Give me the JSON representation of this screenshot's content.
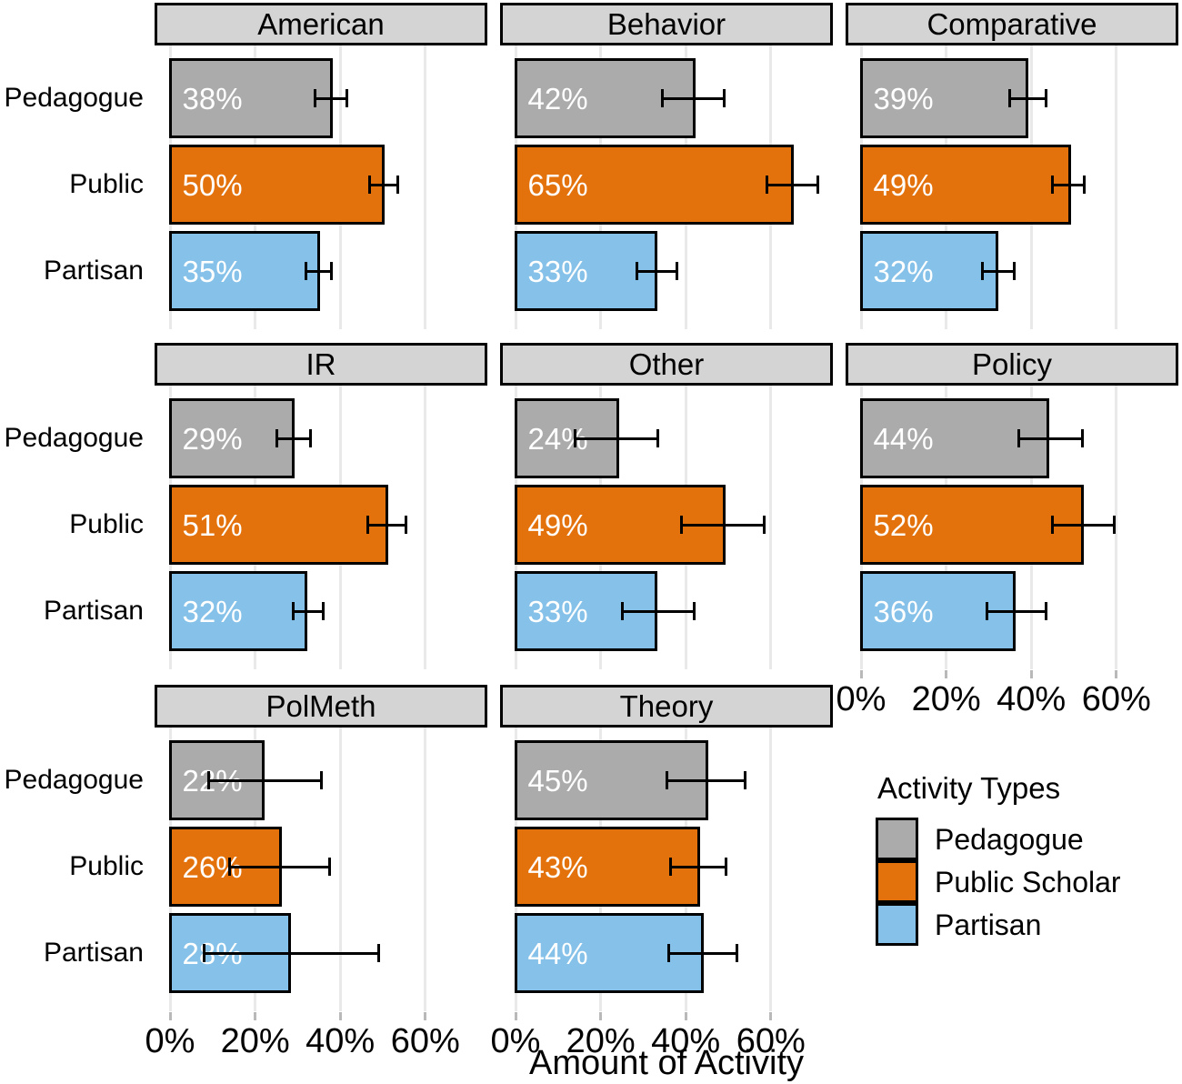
{
  "chart_data": {
    "type": "bar",
    "orientation": "horizontal",
    "title": "",
    "xlabel": "Amount of Activity",
    "ylabel": "",
    "categories": [
      "Pedagogue",
      "Public",
      "Partisan"
    ],
    "series_colors": [
      "#ABABAB",
      "#E4720C",
      "#85C1E8"
    ],
    "x_ticks": [
      "0%",
      "20%",
      "40%",
      "60%"
    ],
    "x_tick_values": [
      0,
      20,
      40,
      60
    ],
    "x_range": [
      0,
      74.5
    ],
    "grid": true,
    "facets": [
      {
        "title": "American",
        "row": 0,
        "col": 0,
        "values": [
          38,
          50,
          35
        ],
        "labels": [
          "38%",
          "50%",
          "35%"
        ],
        "ci": [
          [
            34,
            41.5
          ],
          [
            47,
            53.5
          ],
          [
            32,
            38
          ]
        ]
      },
      {
        "title": "Behavior",
        "row": 0,
        "col": 1,
        "values": [
          42,
          65,
          33
        ],
        "labels": [
          "42%",
          "65%",
          "33%"
        ],
        "ci": [
          [
            34.5,
            49
          ],
          [
            59,
            71
          ],
          [
            28.5,
            38
          ]
        ]
      },
      {
        "title": "Comparative",
        "row": 0,
        "col": 2,
        "values": [
          39,
          49,
          32
        ],
        "labels": [
          "39%",
          "49%",
          "32%"
        ],
        "ci": [
          [
            35,
            43.5
          ],
          [
            45,
            52.5
          ],
          [
            28.5,
            36
          ]
        ]
      },
      {
        "title": "IR",
        "row": 1,
        "col": 0,
        "values": [
          29,
          51,
          32
        ],
        "labels": [
          "29%",
          "51%",
          "32%"
        ],
        "ci": [
          [
            25,
            33
          ],
          [
            46.5,
            55.5
          ],
          [
            29,
            36
          ]
        ]
      },
      {
        "title": "Other",
        "row": 1,
        "col": 1,
        "values": [
          24,
          49,
          33
        ],
        "labels": [
          "24%",
          "49%",
          "33%"
        ],
        "ci": [
          [
            14,
            33.5
          ],
          [
            39,
            58.5
          ],
          [
            25,
            42
          ]
        ]
      },
      {
        "title": "Policy",
        "row": 1,
        "col": 2,
        "values": [
          44,
          52,
          36
        ],
        "labels": [
          "44%",
          "52%",
          "36%"
        ],
        "ci": [
          [
            37,
            52
          ],
          [
            45,
            59.5
          ],
          [
            29.5,
            43.5
          ]
        ]
      },
      {
        "title": "PolMeth",
        "row": 2,
        "col": 0,
        "values": [
          22,
          26,
          28
        ],
        "labels": [
          "22%",
          "26%",
          "28%"
        ],
        "ci": [
          [
            9,
            35.5
          ],
          [
            14,
            37.5
          ],
          [
            8,
            49
          ]
        ]
      },
      {
        "title": "Theory",
        "row": 2,
        "col": 1,
        "values": [
          45,
          43,
          44
        ],
        "labels": [
          "45%",
          "43%",
          "44%"
        ],
        "ci": [
          [
            35.5,
            54
          ],
          [
            36.5,
            49.5
          ],
          [
            36,
            52
          ]
        ]
      }
    ],
    "legend": {
      "title": "Activity Types",
      "position": "bottom-right",
      "entries": [
        {
          "label": "Pedagogue",
          "color": "#ABABAB"
        },
        {
          "label": "Public Scholar",
          "color": "#E4720C"
        },
        {
          "label": "Partisan",
          "color": "#85C1E8"
        }
      ]
    }
  },
  "styles": {
    "background": "#FFFFFF",
    "gridline_color": "#E9E9E9",
    "tick_color": "#B9B9B9",
    "header_fill": "#D4D4D4",
    "bar_border": "#000000",
    "bar_label_color": "#FFFFFF",
    "text_color": "#000000"
  }
}
